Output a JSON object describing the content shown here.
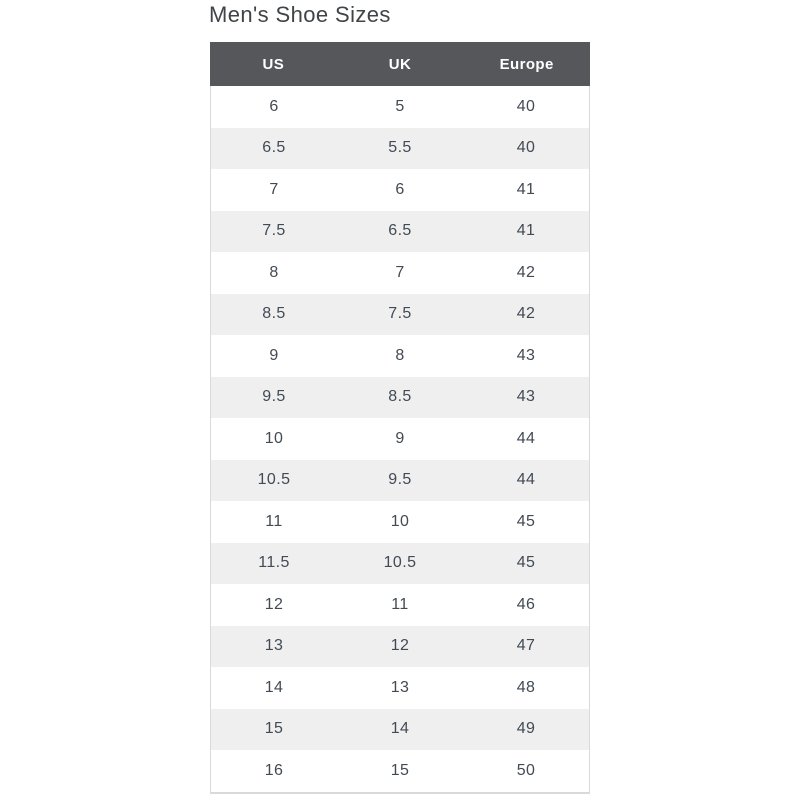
{
  "page_title": "Men's Shoe Sizes",
  "colors": {
    "header_bg": "#55575a",
    "header_text": "#ffffff",
    "row_alt_bg": "#efeff0",
    "row_bg": "#ffffff",
    "body_text": "#424a53",
    "title_text": "#404447",
    "border": "#d9d9da"
  },
  "chart_data": {
    "type": "table",
    "title": "Men's Shoe Sizes",
    "columns": [
      "US",
      "UK",
      "Europe"
    ],
    "rows": [
      [
        "6",
        "5",
        "40"
      ],
      [
        "6.5",
        "5.5",
        "40"
      ],
      [
        "7",
        "6",
        "41"
      ],
      [
        "7.5",
        "6.5",
        "41"
      ],
      [
        "8",
        "7",
        "42"
      ],
      [
        "8.5",
        "7.5",
        "42"
      ],
      [
        "9",
        "8",
        "43"
      ],
      [
        "9.5",
        "8.5",
        "43"
      ],
      [
        "10",
        "9",
        "44"
      ],
      [
        "10.5",
        "9.5",
        "44"
      ],
      [
        "11",
        "10",
        "45"
      ],
      [
        "11.5",
        "10.5",
        "45"
      ],
      [
        "12",
        "11",
        "46"
      ],
      [
        "13",
        "12",
        "47"
      ],
      [
        "14",
        "13",
        "48"
      ],
      [
        "15",
        "14",
        "49"
      ],
      [
        "16",
        "15",
        "50"
      ]
    ],
    "layout": {
      "row_striping": "alternating white / light-gray starting with white",
      "header_style": "dark gray bar, white bold centered labels",
      "alignment": "all cells center-aligned, three equal columns"
    }
  }
}
